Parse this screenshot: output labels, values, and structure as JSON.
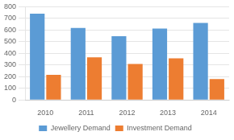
{
  "chart_data": {
    "type": "bar",
    "categories": [
      "2010",
      "2011",
      "2012",
      "2013",
      "2014"
    ],
    "series": [
      {
        "name": "Jewellery Demand",
        "color": "#5B9BD5",
        "values": [
          740,
          618,
          548,
          612,
          662
        ]
      },
      {
        "name": "Investment Demand",
        "color": "#ED7D31",
        "values": [
          215,
          365,
          308,
          358,
          180
        ]
      }
    ],
    "ylim": [
      0,
      800
    ],
    "yticks": [
      0,
      100,
      200,
      300,
      400,
      500,
      600,
      700,
      800
    ],
    "grid": true,
    "legend": "bottom"
  }
}
